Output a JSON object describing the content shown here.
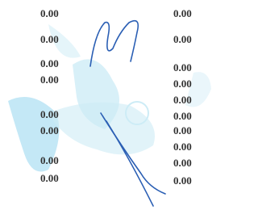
{
  "left_column": [
    "0.00",
    "0.00",
    "0.00",
    "0.00",
    "0.00",
    "0.00",
    "0.00",
    "0.00"
  ],
  "right_column": [
    "0.00",
    "0.00",
    "0.00",
    "0.00",
    "0.00",
    "0.00",
    "0.00",
    "0.00",
    "0.00",
    "0.00"
  ]
}
